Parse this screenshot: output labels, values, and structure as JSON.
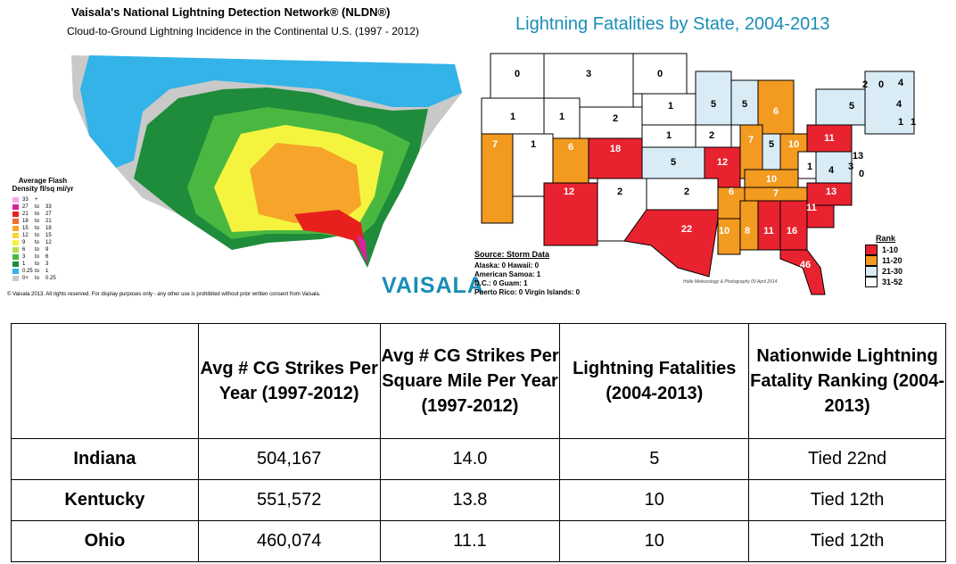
{
  "lightning_map": {
    "title": "Vaisala's National Lightning Detection Network® (NLDN®)",
    "subtitle": "Cloud-to-Ground Lightning Incidence in the Continental U.S. (1997 - 2012)",
    "legend_title": "Average Flash Density fl/sq mi/yr",
    "legend": [
      {
        "min": "33",
        "to": "+",
        "max": "",
        "color": "#f7a6e8"
      },
      {
        "min": "27",
        "to": "to",
        "max": "33",
        "color": "#d6249a"
      },
      {
        "min": "21",
        "to": "to",
        "max": "27",
        "color": "#e8201c"
      },
      {
        "min": "18",
        "to": "to",
        "max": "21",
        "color": "#f46d2c"
      },
      {
        "min": "15",
        "to": "to",
        "max": "18",
        "color": "#f7a52a"
      },
      {
        "min": "12",
        "to": "to",
        "max": "15",
        "color": "#f9d53a"
      },
      {
        "min": "9",
        "to": "to",
        "max": "12",
        "color": "#f4f43f"
      },
      {
        "min": "6",
        "to": "to",
        "max": "9",
        "color": "#b5e04a"
      },
      {
        "min": "3",
        "to": "to",
        "max": "6",
        "color": "#4ab840"
      },
      {
        "min": "1",
        "to": "to",
        "max": "3",
        "color": "#1e8c3a"
      },
      {
        "min": "0.25",
        "to": "to",
        "max": "1",
        "color": "#33b3e8"
      },
      {
        "min": "0+",
        "to": "to",
        "max": "0.25",
        "color": "#c9c9c9"
      }
    ],
    "copyright": "© Vaisala 2013. All rights reserved. For display purposes only - any other use is prohibited without prior written consent from Vaisala.",
    "logo": "VAISALA"
  },
  "fatality_map": {
    "title": "Lightning Fatalities by State, 2004-2013",
    "source_label": "Source: Storm Data",
    "territories": [
      "Alaska: 0   Hawaii: 0",
      "American Samoa: 1",
      "D.C.: 0   Guam: 1",
      "Puerto Rico: 0   Virgin Islands: 0"
    ],
    "credit": "Holle Meteorology & Photography  09 April 2014",
    "rank_title": "Rank",
    "ranks": [
      {
        "label": "1-10",
        "color": "#e8232f"
      },
      {
        "label": "11-20",
        "color": "#f39a21"
      },
      {
        "label": "21-30",
        "color": "#d9ecf6"
      },
      {
        "label": "31-52",
        "color": "#ffffff"
      }
    ],
    "state_values": [
      {
        "state": "WA",
        "value": "0"
      },
      {
        "state": "MT",
        "value": "3"
      },
      {
        "state": "ND",
        "value": "0"
      },
      {
        "state": "OR",
        "value": "1"
      },
      {
        "state": "ID",
        "value": "1"
      },
      {
        "state": "WY",
        "value": "2"
      },
      {
        "state": "SD",
        "value": "1"
      },
      {
        "state": "MN",
        "value": "5"
      },
      {
        "state": "WI",
        "value": "5"
      },
      {
        "state": "MI",
        "value": "6"
      },
      {
        "state": "NE",
        "value": "1"
      },
      {
        "state": "IA",
        "value": "2"
      },
      {
        "state": "CA",
        "value": "7"
      },
      {
        "state": "NV",
        "value": "1"
      },
      {
        "state": "UT",
        "value": "6"
      },
      {
        "state": "CO",
        "value": "18"
      },
      {
        "state": "KS",
        "value": "5"
      },
      {
        "state": "MO",
        "value": "12"
      },
      {
        "state": "IL",
        "value": "7"
      },
      {
        "state": "IN",
        "value": "5"
      },
      {
        "state": "OH",
        "value": "10"
      },
      {
        "state": "PA",
        "value": "11"
      },
      {
        "state": "NY",
        "value": "5"
      },
      {
        "state": "ME",
        "value": "4"
      },
      {
        "state": "VT",
        "value": "2"
      },
      {
        "state": "NH",
        "value": "0"
      },
      {
        "state": "MA",
        "value": "4"
      },
      {
        "state": "CT",
        "value": "1"
      },
      {
        "state": "RI",
        "value": "1"
      },
      {
        "state": "NJ",
        "value": "13"
      },
      {
        "state": "DE",
        "value": "0"
      },
      {
        "state": "MD",
        "value": "3"
      },
      {
        "state": "AZ",
        "value": "12"
      },
      {
        "state": "NM",
        "value": "2"
      },
      {
        "state": "OK",
        "value": "2"
      },
      {
        "state": "AR",
        "value": "6"
      },
      {
        "state": "KY",
        "value": "10"
      },
      {
        "state": "WV",
        "value": "1"
      },
      {
        "state": "VA",
        "value": "4"
      },
      {
        "state": "TN",
        "value": "7"
      },
      {
        "state": "NC",
        "value": "13"
      },
      {
        "state": "SC",
        "value": "11"
      },
      {
        "state": "TX",
        "value": "22"
      },
      {
        "state": "LA",
        "value": "10"
      },
      {
        "state": "MS",
        "value": "8"
      },
      {
        "state": "AL",
        "value": "11"
      },
      {
        "state": "GA",
        "value": "16"
      },
      {
        "state": "FL",
        "value": "46"
      }
    ]
  },
  "table": {
    "headers": [
      "",
      "Avg # CG Strikes Per Year (1997-2012)",
      "Avg # CG Strikes Per Square Mile Per Year (1997-2012)",
      "Lightning Fatalities (2004-2013)",
      "Nationwide Lightning Fatality Ranking (2004-2013)"
    ],
    "rows": [
      {
        "state": "Indiana",
        "strikes": "504,167",
        "density": "14.0",
        "fatalities": "5",
        "ranking": "Tied 22nd"
      },
      {
        "state": "Kentucky",
        "strikes": "551,572",
        "density": "13.8",
        "fatalities": "10",
        "ranking": "Tied 12th"
      },
      {
        "state": "Ohio",
        "strikes": "460,074",
        "density": "11.1",
        "fatalities": "10",
        "ranking": "Tied 12th"
      }
    ]
  }
}
